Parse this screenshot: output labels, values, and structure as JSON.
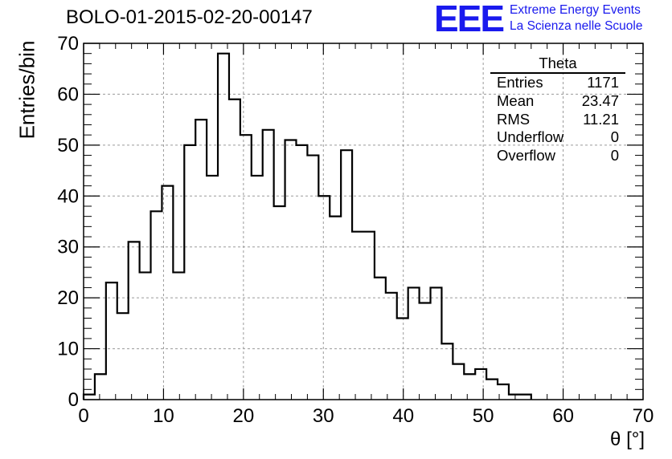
{
  "chart_data": {
    "type": "histogram",
    "title": "BOLO-01-2015-02-20-00147",
    "xlabel": "θ [°]",
    "ylabel": "Entries/bin",
    "xlim": [
      0,
      70
    ],
    "ylim": [
      0,
      70
    ],
    "x_ticks": [
      "0",
      "10",
      "20",
      "30",
      "40",
      "50",
      "60",
      "70"
    ],
    "y_ticks": [
      "0",
      "10",
      "20",
      "30",
      "40",
      "50",
      "60",
      "70"
    ],
    "grid": true,
    "bin_width": 1.4,
    "values": [
      1,
      5,
      23,
      17,
      31,
      25,
      37,
      42,
      25,
      50,
      55,
      44,
      68,
      59,
      52,
      44,
      53,
      38,
      51,
      50,
      48,
      40,
      36,
      49,
      33,
      33,
      24,
      21,
      16,
      22,
      19,
      22,
      11,
      7,
      5,
      6,
      4,
      3,
      1,
      1
    ],
    "stats": {
      "title": "Theta",
      "rows": [
        {
          "label": "Entries",
          "value": "1171"
        },
        {
          "label": "Mean",
          "value": "23.47"
        },
        {
          "label": "RMS",
          "value": "11.21"
        },
        {
          "label": "Underflow",
          "value": "0"
        },
        {
          "label": "Overflow",
          "value": "0"
        }
      ]
    }
  },
  "brand": {
    "logo": "EEE",
    "line1": "Extreme Energy Events",
    "line2": "La Scienza nelle Scuole",
    "color": "#1a1aee"
  }
}
